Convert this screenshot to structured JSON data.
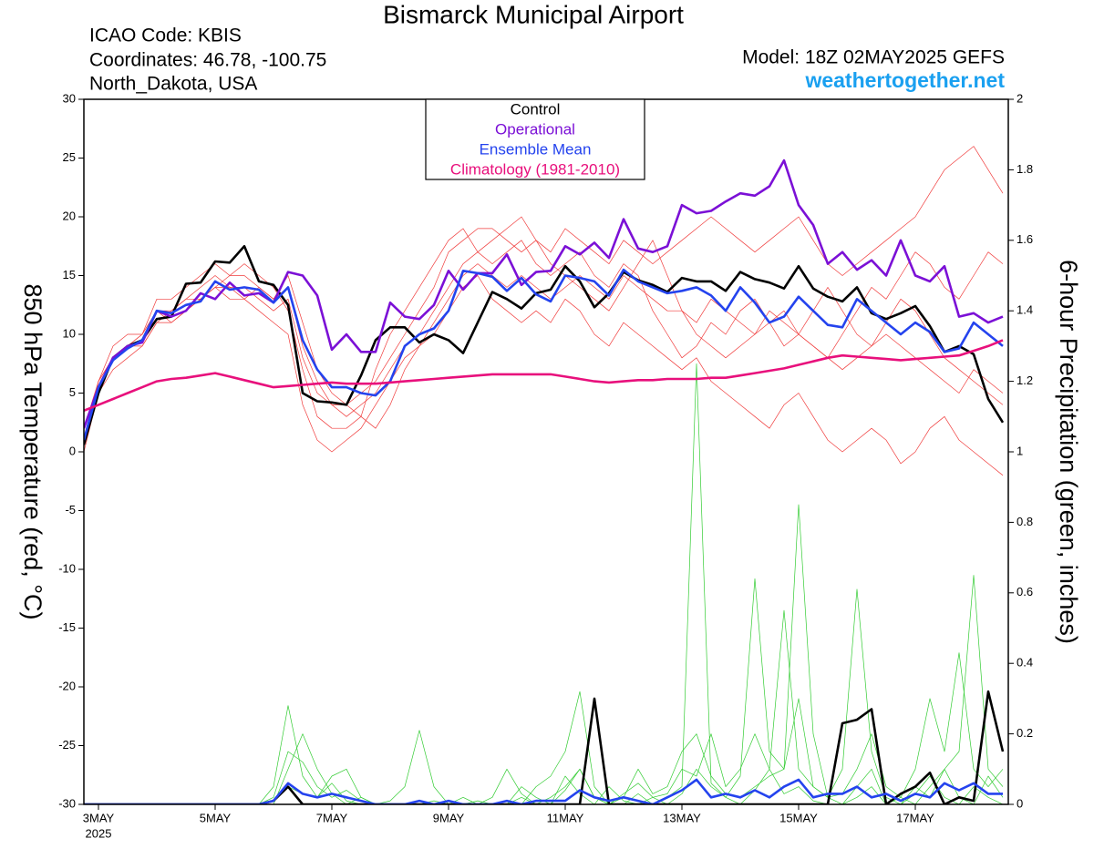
{
  "chart_data": {
    "type": "line",
    "title": "Bismarck Municipal Airport",
    "annotations": {
      "icao": "ICAO Code: KBIS",
      "coordinates": "Coordinates: 46.78, -100.75",
      "location": "North_Dakota, USA",
      "model": "Model: 18Z 02MAY2025 GEFS",
      "source": "weathertogether.net"
    },
    "ylabel": "850 hPa Temperature (red, °C)",
    "y2label": "6-hour Precipitation (green, inches)",
    "legend_position": "top",
    "grid": false,
    "xlim": [
      2.75,
      18.59375
    ],
    "xticks": [
      {
        "value": 3,
        "label": "3MAY"
      },
      {
        "value": 5,
        "label": "5MAY"
      },
      {
        "value": 7,
        "label": "7MAY"
      },
      {
        "value": 9,
        "label": "9MAY"
      },
      {
        "value": 11,
        "label": "11MAY"
      },
      {
        "value": 13,
        "label": "13MAY"
      },
      {
        "value": 15,
        "label": "15MAY"
      },
      {
        "value": 17,
        "label": "17MAY"
      }
    ],
    "year_label": "2025",
    "ylim": [
      -30,
      30
    ],
    "yticks": [
      -30,
      -25,
      -20,
      -15,
      -10,
      -5,
      0,
      5,
      10,
      15,
      20,
      25,
      30
    ],
    "y2lim": [
      0,
      2
    ],
    "y2ticks": [
      0,
      0.2,
      0.4,
      0.6,
      0.8,
      1,
      1.2,
      1.4,
      1.6,
      1.8,
      2
    ],
    "x": [
      2.75,
      3,
      3.25,
      3.5,
      3.75,
      4,
      4.25,
      4.5,
      4.75,
      5,
      5.25,
      5.5,
      5.75,
      6,
      6.25,
      6.5,
      6.75,
      7,
      7.25,
      7.5,
      7.75,
      8,
      8.25,
      8.5,
      8.75,
      9,
      9.25,
      9.5,
      9.75,
      10,
      10.25,
      10.5,
      10.75,
      11,
      11.25,
      11.5,
      11.75,
      12,
      12.25,
      12.5,
      12.75,
      13,
      13.25,
      13.5,
      13.75,
      14,
      14.25,
      14.5,
      14.75,
      15,
      15.25,
      15.5,
      15.75,
      16,
      16.25,
      16.5,
      16.75,
      17,
      17.25,
      17.5,
      17.75,
      18,
      18.25,
      18.5
    ],
    "members": [
      {
        "color": "#f03c3c",
        "values": [
          1,
          6,
          8,
          9,
          10,
          12,
          12,
          13,
          14,
          15,
          14,
          14,
          13,
          12,
          13,
          8,
          5,
          4,
          4,
          5,
          6,
          8,
          10,
          12,
          14,
          17,
          18,
          19,
          19,
          18,
          17,
          18,
          17,
          19,
          18,
          17,
          16,
          18,
          17,
          16,
          17,
          18,
          19,
          20,
          19,
          18,
          17,
          18,
          19,
          20,
          18,
          16,
          15,
          16,
          17,
          18,
          19,
          20,
          22,
          24,
          25,
          26,
          24,
          22
        ]
      },
      {
        "color": "#f03c3c",
        "values": [
          0,
          5,
          7,
          8,
          9,
          11,
          11,
          12,
          13,
          14,
          13,
          13,
          12,
          11,
          10,
          4,
          1,
          0,
          1,
          2,
          4,
          6,
          8,
          9,
          10,
          12,
          14,
          15,
          13,
          12,
          11,
          12,
          11,
          13,
          12,
          10,
          9,
          11,
          10,
          9,
          8,
          7,
          8,
          6,
          5,
          4,
          3,
          2,
          4,
          5,
          3,
          1,
          0,
          1,
          2,
          1,
          -1,
          0,
          2,
          3,
          1,
          0,
          -1,
          -2
        ]
      },
      {
        "color": "#f03c3c",
        "values": [
          2,
          6,
          9,
          10,
          10,
          13,
          13,
          14,
          15,
          16,
          15,
          16,
          15,
          14,
          12,
          7,
          3,
          2,
          2,
          3,
          7,
          10,
          12,
          14,
          16,
          18,
          19,
          17,
          16,
          17,
          18,
          16,
          15,
          16,
          17,
          15,
          14,
          16,
          15,
          12,
          10,
          8,
          9,
          11,
          10,
          12,
          13,
          11,
          9,
          10,
          12,
          14,
          12,
          10,
          9,
          11,
          13,
          12,
          10,
          8,
          7,
          6,
          5,
          4
        ]
      },
      {
        "color": "#f03c3c",
        "values": [
          1,
          5,
          8,
          9,
          9,
          11,
          12,
          13,
          13,
          14,
          15,
          15,
          14,
          13,
          15,
          11,
          7,
          5,
          4,
          3,
          2,
          4,
          7,
          9,
          11,
          13,
          15,
          16,
          15,
          14,
          15,
          14,
          13,
          14,
          15,
          14,
          13,
          15,
          14,
          13,
          12,
          12,
          11,
          13,
          12,
          11,
          10,
          11,
          12,
          10,
          9,
          8,
          7,
          8,
          9,
          10,
          9,
          8,
          7,
          6,
          5,
          7,
          6,
          5
        ]
      },
      {
        "color": "#f03c3c",
        "values": [
          1,
          6,
          8,
          9,
          10,
          12,
          11,
          12,
          13,
          14,
          14,
          13,
          14,
          13,
          14,
          9,
          6,
          4,
          3,
          4,
          5,
          7,
          9,
          10,
          12,
          14,
          16,
          17,
          18,
          19,
          20,
          18,
          16,
          15,
          14,
          13,
          12,
          14,
          16,
          18,
          15,
          12,
          10,
          9,
          8,
          9,
          10,
          12,
          11,
          10,
          9,
          8,
          10,
          12,
          14,
          13,
          15,
          17,
          16,
          14,
          13,
          15,
          17,
          16
        ]
      },
      {
        "color": "#33cc33",
        "axis": "y2",
        "values": [
          0,
          0,
          0,
          0,
          0,
          0,
          0,
          0,
          0,
          0,
          0,
          0,
          0,
          0.05,
          0.28,
          0.08,
          0.02,
          0.06,
          0.01,
          0,
          0,
          0,
          0,
          0,
          0,
          0,
          0,
          0.01,
          0,
          0,
          0.02,
          0,
          0,
          0.04,
          0.1,
          0.02,
          0,
          0,
          0.03,
          0,
          0.02,
          0.05,
          1.25,
          0.06,
          0.02,
          0,
          0.04,
          0.1,
          0.03,
          0.05,
          0.01,
          0,
          0,
          0.02,
          0.05,
          0,
          0,
          0.03,
          0.08,
          0.02,
          0,
          0.05,
          0.02,
          0
        ]
      },
      {
        "color": "#33cc33",
        "axis": "y2",
        "values": [
          0,
          0,
          0,
          0,
          0,
          0,
          0,
          0,
          0,
          0,
          0,
          0,
          0,
          0.02,
          0.15,
          0.12,
          0.05,
          0.02,
          0.04,
          0.01,
          0,
          0,
          0,
          0,
          0.01,
          0,
          0,
          0,
          0,
          0,
          0.05,
          0.02,
          0,
          0.08,
          0.03,
          0,
          0.05,
          0.01,
          0,
          0.02,
          0,
          0.03,
          0.1,
          0.05,
          0.02,
          0.08,
          0.64,
          0.15,
          0.1,
          0.85,
          0.2,
          0.02,
          0,
          0.05,
          0.1,
          0,
          0.02,
          0,
          0.05,
          0.1,
          0.02,
          0,
          0.08,
          0.02
        ]
      },
      {
        "color": "#33cc33",
        "axis": "y2",
        "values": [
          0,
          0,
          0,
          0,
          0,
          0,
          0,
          0,
          0,
          0,
          0,
          0,
          0,
          0,
          0.1,
          0.2,
          0.1,
          0.03,
          0,
          0.02,
          0,
          0,
          0,
          0.01,
          0,
          0,
          0.02,
          0,
          0,
          0.01,
          0,
          0.05,
          0.08,
          0.15,
          0.32,
          0.05,
          0,
          0.02,
          0.1,
          0.03,
          0.05,
          0.15,
          0.2,
          0.08,
          0.03,
          0.02,
          0.05,
          0.08,
          0.1,
          0.3,
          0.05,
          0.02,
          0.1,
          0.61,
          0.15,
          0.02,
          0,
          0.05,
          0.02,
          0.1,
          0.15,
          0.65,
          0.1,
          0.05
        ]
      },
      {
        "color": "#33cc33",
        "axis": "y2",
        "values": [
          0,
          0,
          0,
          0,
          0,
          0,
          0,
          0,
          0,
          0,
          0,
          0,
          0,
          0.01,
          0.05,
          0.03,
          0.02,
          0.08,
          0.1,
          0.02,
          0,
          0.01,
          0.05,
          0.21,
          0.05,
          0,
          0,
          0,
          0.02,
          0.1,
          0.03,
          0,
          0.02,
          0.05,
          0.1,
          0.02,
          0,
          0.03,
          0.06,
          0.02,
          0.03,
          0.1,
          0.08,
          0.2,
          0.05,
          0.1,
          0.2,
          0.1,
          0.55,
          0.1,
          0.05,
          0.02,
          0.03,
          0.1,
          0.2,
          0.05,
          0.02,
          0.1,
          0.3,
          0.15,
          0.43,
          0.1,
          0.05,
          0.1
        ]
      }
    ],
    "series": [
      {
        "name": "Control",
        "color": "#000000",
        "values": [
          0.6,
          5,
          8,
          9,
          9.5,
          11.3,
          11.5,
          14.3,
          14.4,
          16.2,
          16.1,
          17.5,
          14.5,
          14.2,
          12.5,
          5,
          4.3,
          4.2,
          4,
          6.5,
          9.5,
          10.6,
          10.6,
          9.3,
          10,
          9.5,
          8.4,
          11,
          13.6,
          13,
          12.2,
          13.5,
          13.8,
          15.8,
          14.5,
          12.3,
          13.5,
          15.3,
          14.6,
          14.2,
          13.6,
          14.8,
          14.5,
          14.5,
          13.7,
          15.3,
          14.7,
          14.4,
          13.9,
          15.8,
          13.9,
          13.2,
          12.8,
          14,
          11.8,
          11.3,
          11.8,
          12.4,
          10.7,
          8.5,
          9,
          8.3,
          4.5,
          2.5
        ]
      },
      {
        "name": "Operational",
        "color": "#7b10d6",
        "values": [
          2,
          5.5,
          8,
          9,
          9.3,
          12,
          11.5,
          12,
          13.5,
          13,
          14.4,
          13.3,
          13.5,
          12.7,
          15.3,
          15,
          13.3,
          8.7,
          10,
          8.5,
          8.5,
          12.7,
          11.5,
          11.3,
          12.5,
          15.4,
          13.8,
          15.2,
          15.2,
          16.8,
          14.2,
          15.3,
          15.4,
          17.5,
          16.8,
          17.8,
          16.5,
          19.8,
          17.3,
          17,
          17.5,
          21,
          20.3,
          20.5,
          21.3,
          22,
          21.8,
          22.6,
          24.8,
          21,
          19.3,
          16,
          17,
          15.5,
          16.3,
          15,
          18,
          15,
          14.5,
          15.8,
          11.5,
          11.8,
          11,
          11.5
        ]
      },
      {
        "name": "Ensemble Mean",
        "color": "#2443ee",
        "values": [
          1,
          5.5,
          7.8,
          8.8,
          9.5,
          12,
          11.8,
          12.5,
          12.8,
          14.5,
          13.8,
          14,
          13.8,
          12.7,
          14,
          9.5,
          7,
          5.5,
          5.5,
          5,
          4.8,
          6,
          9,
          10,
          10.5,
          12,
          15.4,
          15.2,
          14.9,
          13.7,
          14.8,
          13.4,
          12.8,
          15,
          14.8,
          14.5,
          13.3,
          15.5,
          14.5,
          14,
          13.5,
          13.7,
          14,
          13.3,
          12,
          14,
          12.7,
          11,
          11.5,
          13.2,
          12,
          10.8,
          10.6,
          13,
          12,
          11,
          10,
          11,
          10.2,
          8.5,
          8.8,
          11,
          10,
          9
        ]
      },
      {
        "name": "Climatology (1981-2010)",
        "color": "#e8107c",
        "values": [
          3.5,
          4,
          4.5,
          5,
          5.5,
          6,
          6.2,
          6.3,
          6.5,
          6.7,
          6.4,
          6.1,
          5.8,
          5.5,
          5.6,
          5.7,
          5.8,
          5.9,
          5.8,
          5.8,
          5.8,
          5.9,
          6,
          6.1,
          6.2,
          6.3,
          6.4,
          6.5,
          6.6,
          6.6,
          6.6,
          6.6,
          6.6,
          6.4,
          6.2,
          6,
          5.9,
          6,
          6.1,
          6.1,
          6.2,
          6.2,
          6.2,
          6.3,
          6.3,
          6.5,
          6.7,
          6.9,
          7.1,
          7.4,
          7.7,
          8,
          8.2,
          8.1,
          8,
          7.9,
          7.8,
          7.9,
          8,
          8.1,
          8.2,
          8.6,
          9,
          9.5
        ]
      },
      {
        "color": "#000000",
        "axis": "y2",
        "values": [
          0,
          0,
          0,
          0,
          0,
          0,
          0,
          0,
          0,
          0,
          0,
          0,
          0,
          0.01,
          0.05,
          0,
          0,
          0,
          0,
          0,
          0,
          0,
          0,
          0,
          0,
          0,
          0,
          0,
          0,
          0,
          0,
          0,
          0,
          0,
          0,
          0.3,
          0,
          0,
          0,
          0,
          0,
          0,
          0,
          0,
          0,
          0,
          0,
          0,
          0,
          0,
          0,
          0,
          0.23,
          0.24,
          0.27,
          0,
          0.03,
          0.05,
          0.09,
          0,
          0.02,
          0.01,
          0.32,
          0.15
        ]
      },
      {
        "color": "#2443ee",
        "axis": "y2",
        "values": [
          0,
          0,
          0,
          0,
          0,
          0,
          0,
          0,
          0,
          0,
          0,
          0,
          0,
          0.01,
          0.06,
          0.03,
          0.02,
          0.03,
          0.02,
          0.01,
          0,
          0,
          0,
          0.01,
          0,
          0.01,
          0,
          0,
          0,
          0.01,
          0,
          0.01,
          0.01,
          0.01,
          0.04,
          0.02,
          0.01,
          0.02,
          0.01,
          0,
          0.02,
          0.04,
          0.07,
          0.02,
          0.03,
          0.02,
          0.04,
          0.02,
          0.05,
          0.07,
          0.02,
          0.03,
          0.03,
          0.05,
          0.02,
          0.03,
          0.01,
          0.03,
          0.02,
          0.06,
          0.04,
          0.06,
          0.03,
          0.03
        ]
      }
    ]
  }
}
